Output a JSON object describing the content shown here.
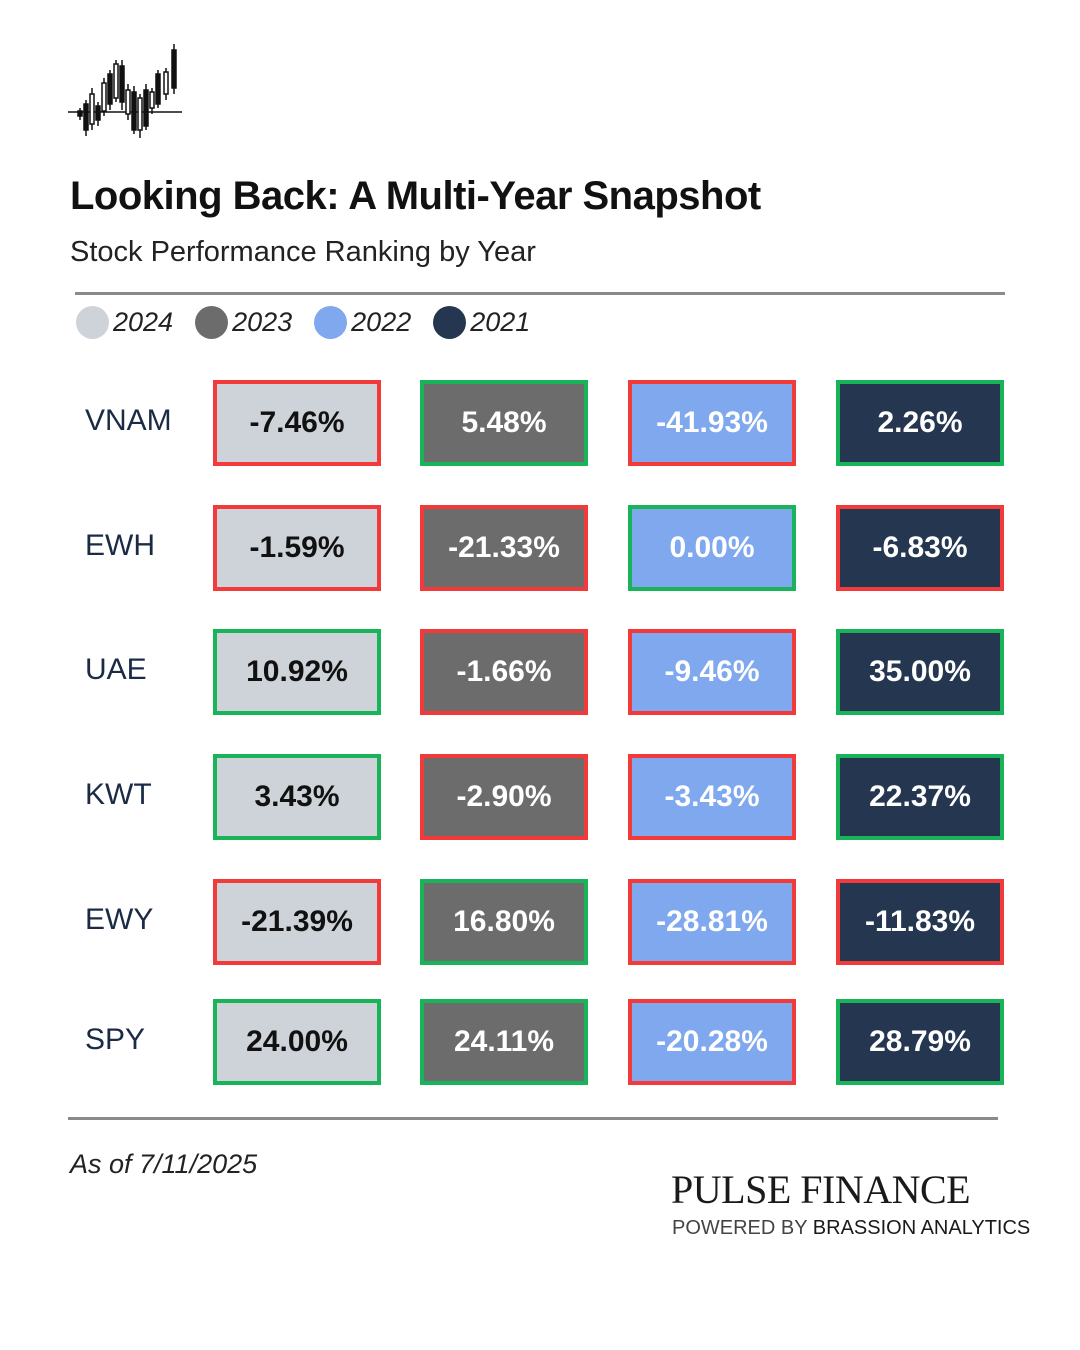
{
  "header": {
    "title": "Looking Back: A Multi-Year Snapshot",
    "subtitle": "Stock Performance Ranking by Year",
    "logo_icon": "candlestick-chart-icon"
  },
  "colors": {
    "positive_border": "#19b45a",
    "negative_border": "#f23a3a",
    "rule": "#8a8a8a"
  },
  "chart_data": {
    "type": "table",
    "title": "Looking Back: A Multi-Year Snapshot",
    "subtitle": "Stock Performance Ranking by Year",
    "legend_placement": "top-left",
    "years": [
      {
        "label": "2024",
        "color": "#cdd3d8",
        "text_color": "#111111"
      },
      {
        "label": "2023",
        "color": "#6c6c6c",
        "text_color": "#ffffff"
      },
      {
        "label": "2022",
        "color": "#7fa8ee",
        "text_color": "#ffffff"
      },
      {
        "label": "2021",
        "color": "#243650",
        "text_color": "#ffffff"
      }
    ],
    "rows": [
      {
        "ticker": "VNAM",
        "values": [
          "-7.46%",
          "5.48%",
          "-41.93%",
          "2.26%"
        ]
      },
      {
        "ticker": "EWH",
        "values": [
          "-1.59%",
          "-21.33%",
          "0.00%",
          "-6.83%"
        ]
      },
      {
        "ticker": "UAE",
        "values": [
          "10.92%",
          "-1.66%",
          "-9.46%",
          "35.00%"
        ]
      },
      {
        "ticker": "KWT",
        "values": [
          "3.43%",
          "-2.90%",
          "-3.43%",
          "22.37%"
        ]
      },
      {
        "ticker": "EWY",
        "values": [
          "-21.39%",
          "16.80%",
          "-28.81%",
          "-11.83%"
        ]
      },
      {
        "ticker": "SPY",
        "values": [
          "24.00%",
          "24.11%",
          "-20.28%",
          "28.79%"
        ]
      }
    ]
  },
  "footer": {
    "as_of": "As of 7/11/2025",
    "brand": "PULSE FINANCE",
    "tagline_prefix": "POWERED BY ",
    "tagline_company": "BRASSION ANALYTICS"
  }
}
